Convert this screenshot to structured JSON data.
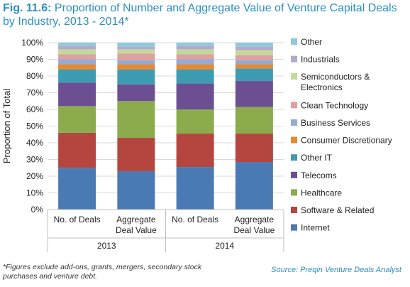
{
  "title_prefix": "Fig. 11.6:",
  "title_text": "Proportion of Number and Aggregate Value of Venture Capital Deals by Industry, 2013 - 2014*",
  "footnote": "*Figures exclude add-ons, grants, mergers, secondary stock purchases and venture debt.",
  "source": "Source: Preqin Venture Deals Analyst",
  "chart_data": {
    "type": "bar",
    "stacked": true,
    "ylabel": "Proportion of Total",
    "ylim": [
      0,
      100
    ],
    "yticks": [
      "0%",
      "10%",
      "20%",
      "30%",
      "40%",
      "50%",
      "60%",
      "70%",
      "80%",
      "90%",
      "100%"
    ],
    "grid": true,
    "legend_placement": "right",
    "categories": [
      [
        "No. of Deals"
      ],
      [
        "Aggregate",
        "Deal Value"
      ],
      [
        "No. of Deals"
      ],
      [
        "Aggregate",
        "Deal Value"
      ]
    ],
    "groups": [
      {
        "label": "2013",
        "span": [
          0,
          1
        ]
      },
      {
        "label": "2014",
        "span": [
          2,
          3
        ]
      }
    ],
    "series": [
      {
        "name": "Internet",
        "color": "#4a7ab3",
        "values": [
          25,
          23,
          25.5,
          28.5
        ]
      },
      {
        "name": "Software & Related",
        "color": "#b4463f",
        "values": [
          21,
          20,
          20,
          17
        ]
      },
      {
        "name": "Healthcare",
        "color": "#8bab4c",
        "values": [
          16,
          22,
          14.5,
          16
        ]
      },
      {
        "name": "Telecoms",
        "color": "#6c4e93",
        "values": [
          14,
          10,
          15.5,
          15.5
        ]
      },
      {
        "name": "Other IT",
        "color": "#3d9cb1",
        "values": [
          8,
          9,
          8.5,
          7.5
        ]
      },
      {
        "name": "Consumer Discretionary",
        "color": "#e58934",
        "values": [
          3,
          3,
          3,
          2.5
        ]
      },
      {
        "name": "Business Services",
        "color": "#94acd4",
        "values": [
          3,
          2.5,
          3,
          2.5
        ]
      },
      {
        "name": "Clean Technology",
        "color": "#e1a0a0",
        "values": [
          3,
          4,
          3,
          3
        ]
      },
      {
        "name": "Semiconductors & Electronics",
        "color": "#c3d99b",
        "values": [
          3,
          2.5,
          3,
          3
        ]
      },
      {
        "name": "Industrials",
        "color": "#b6a7cd",
        "values": [
          2,
          1.5,
          2,
          2
        ]
      },
      {
        "name": "Other",
        "color": "#8ec9dc",
        "values": [
          2,
          2.5,
          2,
          2.5
        ]
      }
    ]
  }
}
